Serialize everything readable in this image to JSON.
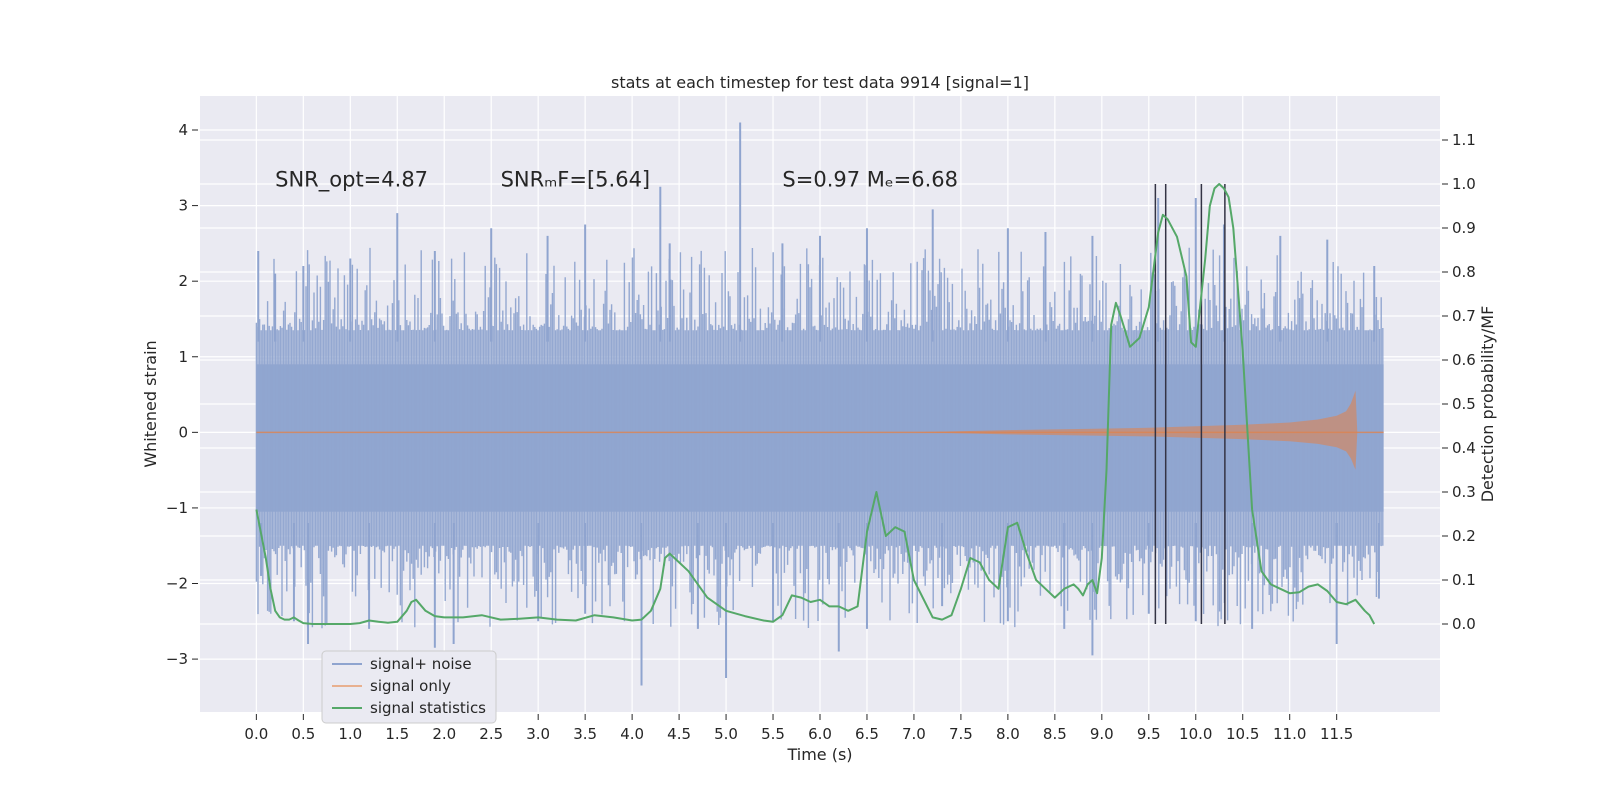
{
  "chart_data": {
    "type": "line",
    "title": "stats at each timestep for test data 9914 [signal=1]",
    "xlabel": "Time (s)",
    "ylabel": "Whitened strain",
    "y2label": "Detection probability/MF",
    "xlim": [
      -0.6,
      12.6
    ],
    "ylim": [
      -3.7,
      4.45
    ],
    "y2lim": [
      -0.2,
      1.2
    ],
    "x_ticks": [
      0.0,
      0.5,
      1.0,
      1.5,
      2.0,
      2.5,
      3.0,
      3.5,
      4.0,
      4.5,
      5.0,
      5.5,
      6.0,
      6.5,
      7.0,
      7.5,
      8.0,
      8.5,
      9.0,
      9.5,
      10.0,
      10.5,
      11.0,
      11.5
    ],
    "x_tick_labels": [
      "0.0",
      "0.5",
      "1.0",
      "1.5",
      "2.0",
      "2.5",
      "3.0",
      "3.5",
      "4.0",
      "4.5",
      "5.0",
      "5.5",
      "6.0",
      "6.5",
      "7.0",
      "7.5",
      "8.0",
      "8.5",
      "9.0",
      "9.5",
      "10.0",
      "10.5",
      "11.0",
      "11.5"
    ],
    "y_ticks": [
      -3,
      -2,
      -1,
      0,
      1,
      2,
      3,
      4
    ],
    "y_tick_labels": [
      "−3",
      "−2",
      "−1",
      "0",
      "1",
      "2",
      "3",
      "4"
    ],
    "y2_ticks": [
      0.0,
      0.1,
      0.2,
      0.3,
      0.4,
      0.5,
      0.6,
      0.7,
      0.8,
      0.9,
      1.0,
      1.1
    ],
    "y2_tick_labels": [
      "0.0",
      "0.1",
      "0.2",
      "0.3",
      "0.4",
      "0.5",
      "0.6",
      "0.7",
      "0.8",
      "0.9",
      "1.0",
      "1.1"
    ],
    "grid": true,
    "background": "#eaeaf2",
    "annotations": [
      {
        "x": 0.2,
        "y": 3.25,
        "text": "SNR_opt=4.87"
      },
      {
        "x": 2.6,
        "y": 3.25,
        "text": "SNRₘF=[5.64]"
      },
      {
        "x": 5.6,
        "y": 3.25,
        "text": "S=0.97   Mₑ=6.68"
      }
    ],
    "vertical_markers": {
      "color": "#333344",
      "x": [
        9.57,
        9.68,
        10.06,
        10.31
      ],
      "y2_range": [
        0.0,
        1.0
      ]
    },
    "series": [
      {
        "name": "signal+ noise",
        "color": "#8fa4cf",
        "axis": "left",
        "x_range": [
          0.0,
          12.0
        ],
        "band_lower": -1.6,
        "band_upper": 1.45,
        "peaks_x": [
          0.02,
          0.2,
          0.5,
          1.0,
          1.5,
          1.9,
          2.5,
          3.1,
          3.5,
          4.3,
          4.4,
          5.15,
          5.6,
          6.0,
          6.5,
          7.2,
          8.0,
          8.4,
          8.9,
          9.6,
          10.0,
          10.3,
          10.9,
          11.4,
          11.9
        ],
        "peaks_y": [
          2.4,
          2.1,
          2.2,
          2.3,
          2.9,
          2.4,
          2.7,
          2.6,
          2.75,
          3.25,
          2.5,
          4.1,
          2.5,
          2.6,
          2.7,
          2.95,
          2.7,
          2.65,
          2.6,
          3.1,
          3.1,
          2.75,
          2.6,
          2.55,
          2.2
        ],
        "troughs_x": [
          0.05,
          0.4,
          0.55,
          1.2,
          1.9,
          2.1,
          3.0,
          3.5,
          4.1,
          4.7,
          5.0,
          5.5,
          6.2,
          6.5,
          7.3,
          8.0,
          8.6,
          8.9,
          9.5,
          10.0,
          10.6,
          11.5,
          11.95
        ],
        "troughs_y": [
          -1.9,
          -2.5,
          -2.8,
          -2.6,
          -2.85,
          -2.8,
          -2.5,
          -2.4,
          -3.35,
          -2.6,
          -3.25,
          -2.5,
          -2.9,
          -2.6,
          -2.3,
          -2.5,
          -2.6,
          -2.95,
          -2.4,
          -2.5,
          -2.6,
          -2.8,
          -2.2
        ]
      },
      {
        "name": "signal only",
        "color": "#dd8452",
        "axis": "left",
        "envelope_x": [
          0.0,
          7.0,
          8.0,
          9.0,
          9.5,
          10.0,
          10.5,
          11.0,
          11.3,
          11.5,
          11.6,
          11.65,
          11.7,
          11.72,
          12.0
        ],
        "envelope_y": [
          0.0,
          0.0,
          0.03,
          0.05,
          0.06,
          0.08,
          0.1,
          0.13,
          0.17,
          0.22,
          0.28,
          0.38,
          0.55,
          0.0,
          0.0
        ]
      },
      {
        "name": "signal statistics",
        "color": "#55a868",
        "axis": "right",
        "x": [
          0.0,
          0.1,
          0.15,
          0.2,
          0.25,
          0.3,
          0.35,
          0.4,
          0.45,
          0.5,
          0.6,
          0.8,
          1.0,
          1.1,
          1.2,
          1.3,
          1.4,
          1.5,
          1.6,
          1.65,
          1.7,
          1.8,
          1.9,
          2.0,
          2.2,
          2.4,
          2.6,
          2.8,
          3.0,
          3.2,
          3.4,
          3.6,
          3.8,
          4.0,
          4.1,
          4.2,
          4.3,
          4.35,
          4.4,
          4.5,
          4.6,
          4.7,
          4.8,
          5.0,
          5.2,
          5.4,
          5.5,
          5.6,
          5.7,
          5.8,
          5.9,
          6.0,
          6.1,
          6.2,
          6.3,
          6.4,
          6.5,
          6.6,
          6.7,
          6.8,
          6.9,
          7.0,
          7.2,
          7.3,
          7.4,
          7.5,
          7.6,
          7.7,
          7.8,
          7.9,
          8.0,
          8.1,
          8.2,
          8.3,
          8.4,
          8.5,
          8.6,
          8.7,
          8.75,
          8.8,
          8.85,
          8.9,
          8.95,
          9.0,
          9.05,
          9.1,
          9.15,
          9.2,
          9.3,
          9.4,
          9.5,
          9.6,
          9.65,
          9.7,
          9.8,
          9.9,
          9.95,
          10.0,
          10.1,
          10.15,
          10.2,
          10.25,
          10.3,
          10.35,
          10.4,
          10.5,
          10.6,
          10.7,
          10.8,
          10.9,
          11.0,
          11.1,
          11.2,
          11.3,
          11.4,
          11.5,
          11.6,
          11.7,
          11.8,
          11.85,
          11.9
        ],
        "y": [
          0.26,
          0.15,
          0.08,
          0.03,
          0.015,
          0.01,
          0.01,
          0.015,
          0.008,
          0.002,
          0.0,
          0.0,
          0.0,
          0.002,
          0.008,
          0.005,
          0.003,
          0.005,
          0.03,
          0.05,
          0.055,
          0.03,
          0.018,
          0.015,
          0.015,
          0.02,
          0.01,
          0.012,
          0.015,
          0.01,
          0.008,
          0.02,
          0.015,
          0.008,
          0.01,
          0.03,
          0.08,
          0.15,
          0.16,
          0.14,
          0.12,
          0.09,
          0.06,
          0.03,
          0.018,
          0.008,
          0.005,
          0.02,
          0.065,
          0.06,
          0.05,
          0.055,
          0.04,
          0.04,
          0.03,
          0.04,
          0.21,
          0.3,
          0.2,
          0.22,
          0.21,
          0.1,
          0.015,
          0.01,
          0.02,
          0.08,
          0.15,
          0.14,
          0.1,
          0.08,
          0.22,
          0.23,
          0.16,
          0.1,
          0.08,
          0.06,
          0.08,
          0.09,
          0.08,
          0.065,
          0.09,
          0.1,
          0.07,
          0.15,
          0.35,
          0.68,
          0.73,
          0.7,
          0.63,
          0.65,
          0.72,
          0.89,
          0.93,
          0.92,
          0.88,
          0.79,
          0.64,
          0.63,
          0.83,
          0.95,
          0.99,
          1.0,
          0.99,
          0.97,
          0.9,
          0.62,
          0.26,
          0.12,
          0.09,
          0.08,
          0.07,
          0.072,
          0.085,
          0.09,
          0.075,
          0.05,
          0.045,
          0.055,
          0.03,
          0.02,
          0.0
        ]
      }
    ],
    "legend": {
      "placement": "lower-left",
      "entries": [
        "signal+ noise",
        "signal only",
        "signal statistics"
      ]
    }
  }
}
